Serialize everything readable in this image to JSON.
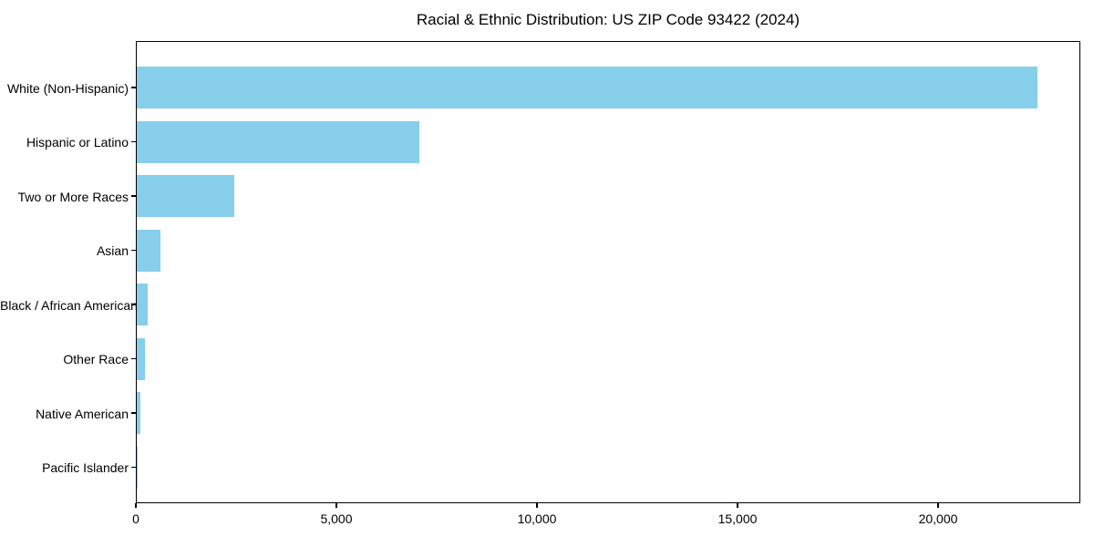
{
  "chart_data": {
    "type": "bar",
    "orientation": "horizontal",
    "title": "Racial & Ethnic Distribution: US ZIP Code 93422 (2024)",
    "categories": [
      "White (Non-Hispanic)",
      "Hispanic or Latino",
      "Two or More Races",
      "Asian",
      "Black / African American",
      "Other Race",
      "Native American",
      "Pacific Islander"
    ],
    "values": [
      22450,
      7050,
      2430,
      590,
      270,
      205,
      90,
      20
    ],
    "bar_color": "#87CEEB",
    "axis_color": "#000000",
    "text_color": "#000000",
    "background_color": "#FFFFFF",
    "xlim": [
      0,
      23545
    ],
    "x_ticks": [
      {
        "value": 0,
        "label": "0"
      },
      {
        "value": 5000,
        "label": "5,000"
      },
      {
        "value": 10000,
        "label": "10,000"
      },
      {
        "value": 15000,
        "label": "15,000"
      },
      {
        "value": 20000,
        "label": "20,000"
      }
    ],
    "xlabel": "",
    "ylabel": "",
    "grid": false,
    "legend": null
  }
}
